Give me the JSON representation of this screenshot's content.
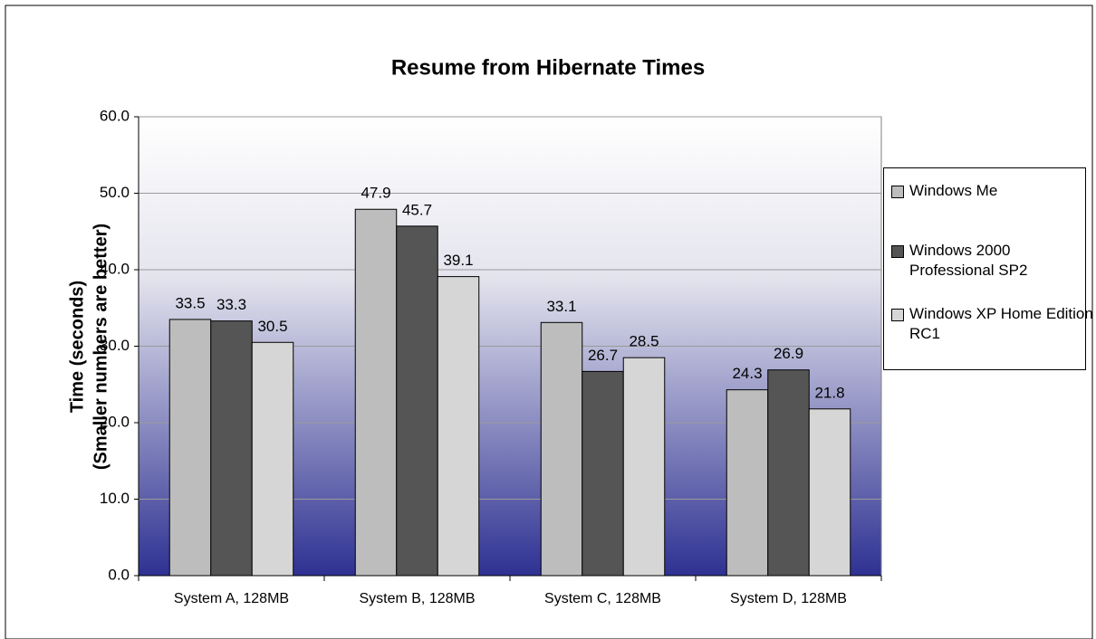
{
  "chart_data": {
    "type": "bar",
    "title": "Resume from Hibernate Times",
    "ylabel": [
      "Time (seconds)",
      "(Smaller numbers are better)"
    ],
    "categories": [
      "System A, 128MB",
      "System B, 128MB",
      "System C, 128MB",
      "System D, 128MB"
    ],
    "series": [
      {
        "name": "Windows Me",
        "color": "#bdbdbd",
        "values": [
          33.5,
          47.9,
          33.1,
          24.3
        ]
      },
      {
        "name": "Windows 2000 Professional SP2",
        "color": "#555555",
        "values": [
          33.3,
          45.7,
          26.7,
          26.9
        ]
      },
      {
        "name": "Windows XP Home Edition RC1",
        "color": "#d6d6d6",
        "values": [
          30.5,
          39.1,
          28.5,
          21.8
        ]
      }
    ],
    "ylim": [
      0,
      60
    ],
    "yticks": [
      {
        "value": 0,
        "label": "0.0"
      },
      {
        "value": 10,
        "label": "10.0"
      },
      {
        "value": 20,
        "label": "20.0"
      },
      {
        "value": 30,
        "label": "30.0"
      },
      {
        "value": 40,
        "label": "40.0"
      },
      {
        "value": 50,
        "label": "50.0"
      },
      {
        "value": 60,
        "label": "60.0"
      }
    ],
    "grid": true,
    "legend": "right"
  }
}
